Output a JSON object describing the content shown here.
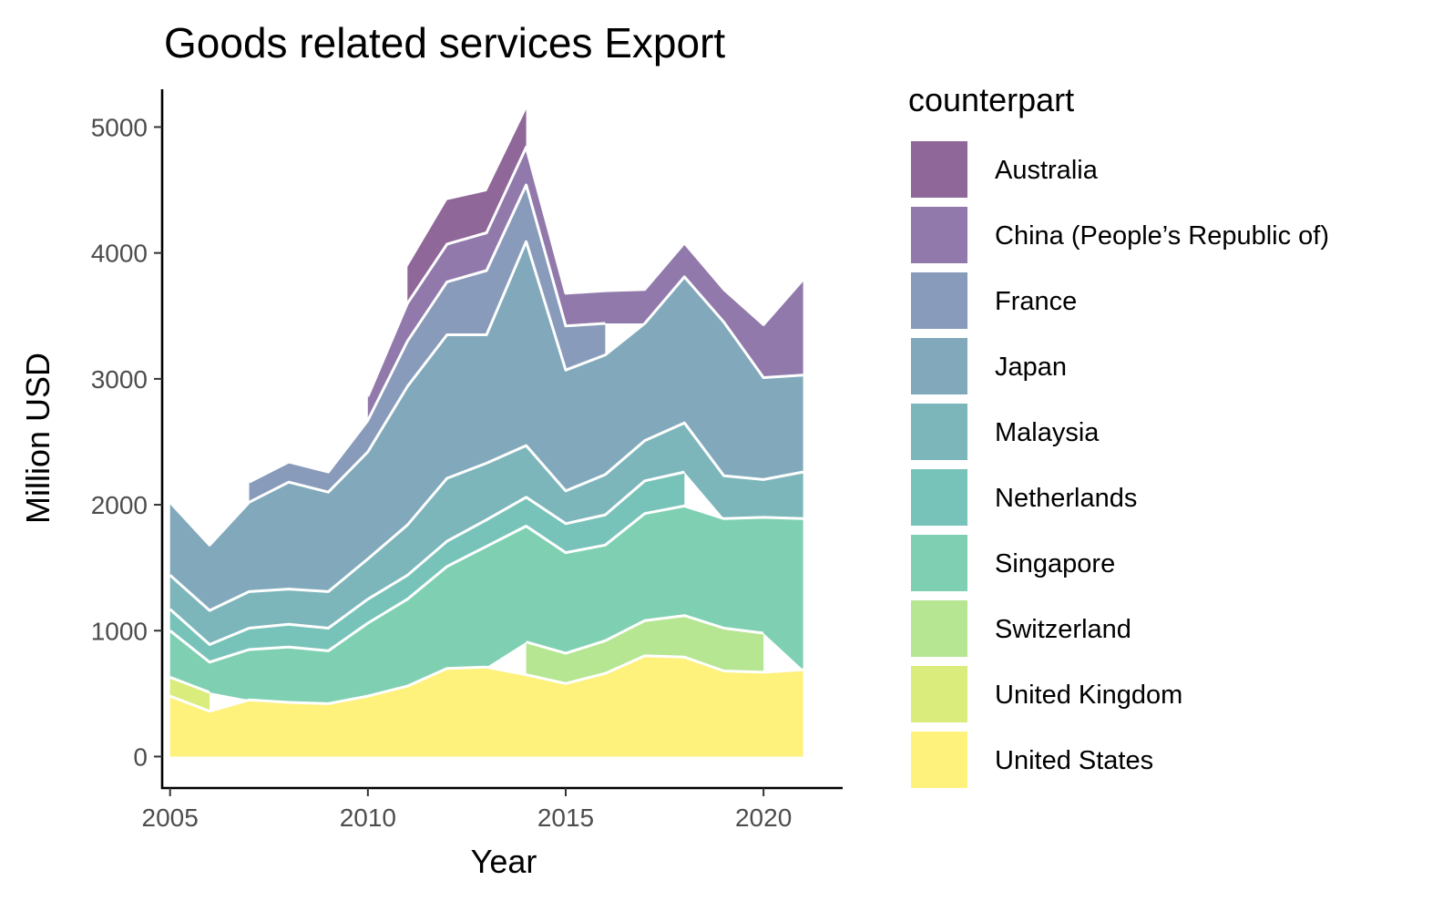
{
  "chart_data": {
    "type": "area",
    "stacked": true,
    "title": "Goods related services Export",
    "xlabel": "Year",
    "ylabel": "Million USD",
    "xlim": [
      2004.8,
      2022.0
    ],
    "ylim": [
      -250,
      5300
    ],
    "x_ticks": [
      2005,
      2010,
      2015,
      2020
    ],
    "y_ticks": [
      0,
      1000,
      2000,
      3000,
      4000,
      5000
    ],
    "legend": {
      "title": "counterpart",
      "position": "right",
      "entries": [
        "Australia",
        "China (People’s Republic of)",
        "France",
        "Japan",
        "Malaysia",
        "Netherlands",
        "Singapore",
        "Switzerland",
        "United Kingdom",
        "United States"
      ]
    },
    "x": [
      2005,
      2006,
      2007,
      2008,
      2009,
      2010,
      2011,
      2012,
      2013,
      2014,
      2015,
      2016,
      2017,
      2018,
      2019,
      2020,
      2021
    ],
    "series": [
      {
        "name": "United States",
        "color": "#FDE725",
        "values": [
          480,
          360,
          450,
          430,
          420,
          480,
          560,
          700,
          710,
          650,
          580,
          660,
          800,
          790,
          680,
          670,
          690
        ]
      },
      {
        "name": "United Kingdom",
        "color": "#C2DF23",
        "values": [
          150,
          150,
          null,
          null,
          null,
          null,
          null,
          null,
          null,
          null,
          null,
          null,
          null,
          null,
          null,
          null,
          null
        ]
      },
      {
        "name": "Switzerland",
        "color": "#86D549",
        "values": [
          null,
          null,
          null,
          null,
          null,
          null,
          null,
          null,
          null,
          260,
          240,
          260,
          280,
          330,
          340,
          310,
          null
        ]
      },
      {
        "name": "Singapore",
        "color": "#2AB07F",
        "values": [
          370,
          240,
          400,
          440,
          420,
          580,
          690,
          810,
          960,
          920,
          800,
          760,
          850,
          870,
          870,
          920,
          1200
        ]
      },
      {
        "name": "Netherlands",
        "color": "#1E9B8A",
        "values": [
          170,
          140,
          170,
          180,
          180,
          190,
          190,
          200,
          210,
          230,
          230,
          240,
          260,
          270,
          null,
          null,
          null
        ]
      },
      {
        "name": "Malaysia",
        "color": "#25858E",
        "values": [
          270,
          270,
          290,
          280,
          290,
          320,
          400,
          500,
          450,
          410,
          260,
          320,
          320,
          390,
          340,
          300,
          370
        ]
      },
      {
        "name": "Japan",
        "color": "#2D708E",
        "values": [
          580,
          520,
          710,
          850,
          790,
          850,
          1100,
          1140,
          1020,
          1620,
          960,
          950,
          930,
          1160,
          1220,
          810,
          770
        ]
      },
      {
        "name": "France",
        "color": "#38598C",
        "values": [
          null,
          null,
          160,
          160,
          160,
          250,
          360,
          420,
          510,
          450,
          350,
          250,
          null,
          null,
          null,
          null,
          null
        ]
      },
      {
        "name": "China (People’s Republic of)",
        "color": "#482173",
        "values": [
          null,
          null,
          null,
          null,
          null,
          190,
          300,
          300,
          300,
          300,
          260,
          260,
          270,
          270,
          260,
          420,
          760
        ]
      },
      {
        "name": "Australia",
        "color": "#440154",
        "values": [
          null,
          null,
          null,
          null,
          null,
          null,
          290,
          350,
          330,
          300,
          null,
          null,
          null,
          null,
          null,
          null,
          null
        ]
      }
    ]
  }
}
